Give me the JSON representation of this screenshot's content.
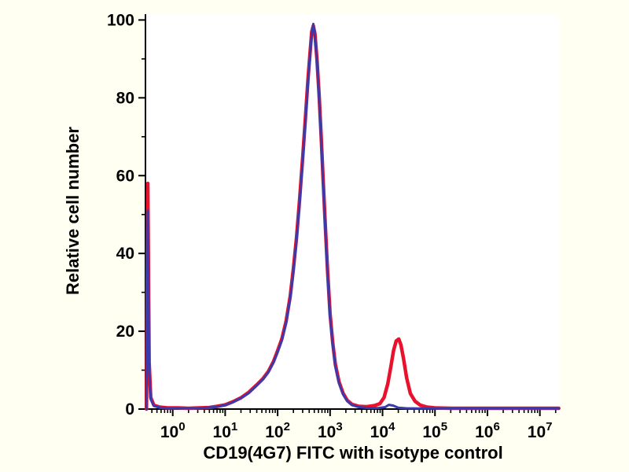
{
  "chart_data": {
    "type": "line",
    "title": "",
    "xlabel": "CD19(4G7) FITC with isotype control",
    "ylabel": "Relative cell number",
    "x_scale": "log",
    "xlim_log": [
      -0.52,
      7.38
    ],
    "ylim": [
      0,
      101.5
    ],
    "x_tick_exponents": [
      0,
      1,
      2,
      3,
      4,
      5,
      6,
      7
    ],
    "x_tick_base": "10",
    "y_ticks": [
      0,
      20,
      40,
      60,
      80,
      100
    ],
    "y_minor_step": 10,
    "grid": false,
    "legend": "none",
    "background": "#fffff2",
    "plot_background": "#ffffff",
    "axis_color": "#000000",
    "series": [
      {
        "name": "red_series",
        "color": "#e8122d",
        "width": 4.5,
        "points": [
          [
            -0.5,
            0
          ],
          [
            -0.475,
            58
          ],
          [
            -0.45,
            12
          ],
          [
            -0.42,
            3
          ],
          [
            -0.36,
            1
          ],
          [
            -0.25,
            0.5
          ],
          [
            -0.1,
            0.3
          ],
          [
            0.1,
            0.3
          ],
          [
            0.3,
            0.2
          ],
          [
            0.5,
            0.3
          ],
          [
            0.7,
            0.4
          ],
          [
            0.85,
            0.7
          ],
          [
            1.0,
            1.1
          ],
          [
            1.15,
            1.9
          ],
          [
            1.3,
            2.9
          ],
          [
            1.45,
            4.3
          ],
          [
            1.6,
            6.2
          ],
          [
            1.72,
            7.8
          ],
          [
            1.82,
            9.6
          ],
          [
            1.92,
            12.2
          ],
          [
            2.0,
            15
          ],
          [
            2.08,
            18
          ],
          [
            2.16,
            22.5
          ],
          [
            2.24,
            29
          ],
          [
            2.3,
            36
          ],
          [
            2.36,
            44
          ],
          [
            2.42,
            54
          ],
          [
            2.48,
            65
          ],
          [
            2.53,
            75
          ],
          [
            2.58,
            85
          ],
          [
            2.62,
            92
          ],
          [
            2.65,
            97
          ],
          [
            2.68,
            98.5
          ],
          [
            2.71,
            96.5
          ],
          [
            2.75,
            90
          ],
          [
            2.79,
            81
          ],
          [
            2.83,
            70
          ],
          [
            2.87,
            58.5
          ],
          [
            2.91,
            47
          ],
          [
            2.95,
            36
          ],
          [
            3.0,
            24.5
          ],
          [
            3.05,
            17
          ],
          [
            3.1,
            11.5
          ],
          [
            3.17,
            7
          ],
          [
            3.25,
            4
          ],
          [
            3.33,
            2.2
          ],
          [
            3.42,
            1.2
          ],
          [
            3.55,
            0.7
          ],
          [
            3.7,
            0.6
          ],
          [
            3.85,
            0.9
          ],
          [
            3.95,
            1.4
          ],
          [
            4.03,
            3
          ],
          [
            4.1,
            6.5
          ],
          [
            4.16,
            11
          ],
          [
            4.21,
            15
          ],
          [
            4.26,
            17.5
          ],
          [
            4.31,
            18
          ],
          [
            4.35,
            16.5
          ],
          [
            4.4,
            13
          ],
          [
            4.46,
            8
          ],
          [
            4.53,
            4
          ],
          [
            4.62,
            2
          ],
          [
            4.72,
            1
          ],
          [
            4.85,
            0.5
          ],
          [
            5.0,
            0.3
          ],
          [
            5.3,
            0.2
          ],
          [
            5.8,
            0.2
          ],
          [
            6.4,
            0.2
          ],
          [
            7.0,
            0.2
          ],
          [
            7.36,
            0.2
          ]
        ]
      },
      {
        "name": "blue_series",
        "color": "#3a3aad",
        "width": 3,
        "points": [
          [
            -0.5,
            0
          ],
          [
            -0.475,
            51
          ],
          [
            -0.45,
            10
          ],
          [
            -0.42,
            2.5
          ],
          [
            -0.36,
            0.8
          ],
          [
            -0.25,
            0.4
          ],
          [
            -0.1,
            0.2
          ],
          [
            0.1,
            0.2
          ],
          [
            0.3,
            0.2
          ],
          [
            0.5,
            0.2
          ],
          [
            0.7,
            0.4
          ],
          [
            0.85,
            0.6
          ],
          [
            1.0,
            1.0
          ],
          [
            1.15,
            1.8
          ],
          [
            1.3,
            2.8
          ],
          [
            1.45,
            4.1
          ],
          [
            1.6,
            6.0
          ],
          [
            1.72,
            7.6
          ],
          [
            1.82,
            9.4
          ],
          [
            1.92,
            12.0
          ],
          [
            2.0,
            14.6
          ],
          [
            2.08,
            17.6
          ],
          [
            2.16,
            22
          ],
          [
            2.24,
            28.5
          ],
          [
            2.3,
            35
          ],
          [
            2.36,
            43.5
          ],
          [
            2.42,
            53
          ],
          [
            2.48,
            64
          ],
          [
            2.53,
            74
          ],
          [
            2.58,
            84
          ],
          [
            2.62,
            91.5
          ],
          [
            2.65,
            96.5
          ],
          [
            2.68,
            99
          ],
          [
            2.71,
            96
          ],
          [
            2.75,
            89.5
          ],
          [
            2.79,
            80
          ],
          [
            2.83,
            69
          ],
          [
            2.87,
            57.5
          ],
          [
            2.91,
            46
          ],
          [
            2.95,
            35
          ],
          [
            3.0,
            23.5
          ],
          [
            3.05,
            16.5
          ],
          [
            3.1,
            11
          ],
          [
            3.17,
            6.6
          ],
          [
            3.25,
            3.7
          ],
          [
            3.33,
            2.0
          ],
          [
            3.42,
            1.0
          ],
          [
            3.55,
            0.5
          ],
          [
            3.7,
            0.3
          ],
          [
            3.9,
            0.25
          ],
          [
            4.05,
            0.5
          ],
          [
            4.12,
            1.1
          ],
          [
            4.2,
            0.9
          ],
          [
            4.3,
            0.35
          ],
          [
            4.45,
            0.2
          ],
          [
            4.7,
            0.15
          ],
          [
            5.0,
            0.15
          ],
          [
            5.5,
            0.15
          ],
          [
            6.2,
            0.15
          ],
          [
            7.0,
            0.15
          ],
          [
            7.36,
            0.15
          ]
        ]
      }
    ]
  }
}
